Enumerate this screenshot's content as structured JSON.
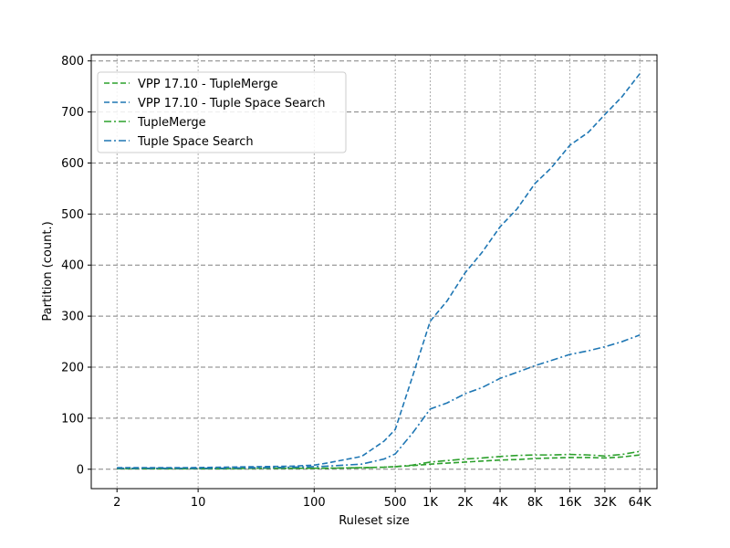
{
  "chart_data": {
    "type": "line",
    "title": "",
    "xlabel": "Ruleset size",
    "ylabel": "Partition (count.)",
    "x_scale": "log",
    "x_ticks": [
      2,
      10,
      100,
      500,
      1000,
      2000,
      4000,
      8000,
      16000,
      32000,
      64000
    ],
    "x_tick_labels": [
      "2",
      "10",
      "100",
      "500",
      "1K",
      "2K",
      "4K",
      "8K",
      "16K",
      "32K",
      "64K"
    ],
    "xlim": [
      1.2,
      90000
    ],
    "ylim": [
      -38,
      812
    ],
    "y_ticks": [
      0,
      100,
      200,
      300,
      400,
      500,
      600,
      700,
      800
    ],
    "y_tick_labels": [
      "0",
      "100",
      "200",
      "300",
      "400",
      "500",
      "600",
      "700",
      "800"
    ],
    "grid": true,
    "legend_position": "top-left",
    "x": [
      2,
      4,
      8,
      16,
      32,
      64,
      100,
      128,
      256,
      400,
      500,
      700,
      1000,
      1400,
      2000,
      2800,
      4000,
      5600,
      8000,
      11000,
      16000,
      23000,
      32000,
      45000,
      64000
    ],
    "series": [
      {
        "name": "VPP 17.10 - TupleMerge",
        "color": "#2ca02c",
        "style": "dashed",
        "values": [
          1,
          1,
          1,
          1,
          2,
          2,
          2,
          2,
          3,
          4,
          5,
          7,
          10,
          12,
          14,
          16,
          18,
          19,
          21,
          22,
          23,
          23,
          22,
          24,
          28
        ]
      },
      {
        "name": "VPP 17.10 - Tuple Space Search",
        "color": "#1f77b4",
        "style": "dashed",
        "values": [
          3,
          3,
          3,
          4,
          5,
          6,
          8,
          12,
          25,
          55,
          78,
          180,
          290,
          330,
          385,
          425,
          475,
          510,
          560,
          590,
          635,
          660,
          695,
          730,
          775
        ]
      },
      {
        "name": "TupleMerge",
        "color": "#2ca02c",
        "style": "dashdot",
        "values": [
          1,
          1,
          1,
          1,
          2,
          2,
          2,
          2,
          3,
          4,
          5,
          8,
          14,
          17,
          20,
          22,
          25,
          27,
          28,
          28,
          29,
          28,
          26,
          29,
          35
        ]
      },
      {
        "name": "Tuple Space Search",
        "color": "#1f77b4",
        "style": "dashdot",
        "values": [
          2,
          2,
          2,
          2,
          3,
          4,
          5,
          6,
          10,
          20,
          30,
          70,
          118,
          130,
          148,
          160,
          178,
          190,
          203,
          213,
          225,
          232,
          240,
          250,
          263
        ]
      }
    ]
  }
}
